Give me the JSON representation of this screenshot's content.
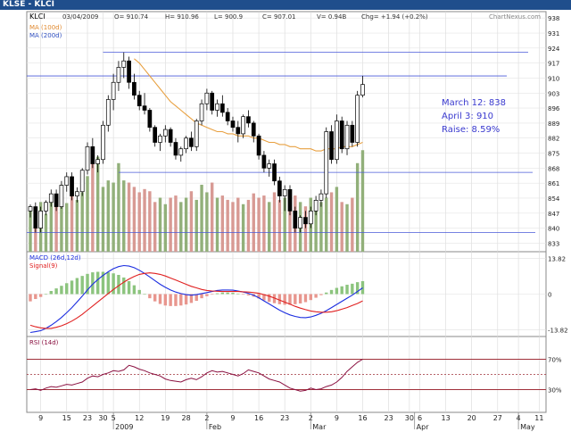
{
  "window": {
    "title": "KLSE - KLCI"
  },
  "header": {
    "symbol": "KLCI",
    "date": "03/04/2009",
    "open": "O= 910.74",
    "high": "H= 910.96",
    "low": "L= 900.9",
    "close": "C= 907.01",
    "volume": "V= 0.94B",
    "change": "Chg= +1.94 (+0.2%)",
    "watermark": "ChartNexus.com"
  },
  "legend": {
    "ma100": "MA (100d)",
    "ma200": "MA (200d)",
    "macd": "MACD (26d,12d)",
    "signal": "Signal(9)",
    "rsi": "RSI (14d)"
  },
  "annotation": {
    "line1": "March 12: 838",
    "line2": "April 3: 910",
    "line3": "Raise: 8.59%"
  },
  "colors": {
    "title_bar": "#1f4e8c",
    "ma100": "#e8a040",
    "ma200": "#3050c0",
    "hline": "#4a5ad8",
    "vol_up": "#92b07a",
    "vol_down": "#d89a94",
    "macd": "#1c2ee0",
    "signal": "#e02020",
    "hist_up": "#8cc47e",
    "hist_down": "#e8968e",
    "rsi": "#8a1040",
    "rsi_band": "#a0303a",
    "annotation": "#3a3acf"
  },
  "chart_data": [
    {
      "type": "candlestick",
      "title": "KLCI",
      "ylim": [
        829,
        941
      ],
      "yticks": [
        938,
        931,
        924,
        917,
        910,
        903,
        896,
        889,
        882,
        875,
        868,
        861,
        854,
        847,
        840,
        833
      ],
      "x_labels": [
        {
          "bar": 2,
          "label": "9"
        },
        {
          "bar": 7,
          "label": "15"
        },
        {
          "bar": 11,
          "label": "23"
        },
        {
          "bar": 14,
          "label": "30"
        },
        {
          "bar": 16,
          "label": "5"
        },
        {
          "bar": 21,
          "label": "12"
        },
        {
          "bar": 26,
          "label": "19"
        },
        {
          "bar": 30,
          "label": "28"
        },
        {
          "bar": 34,
          "label": "2"
        },
        {
          "bar": 39,
          "label": "9"
        },
        {
          "bar": 44,
          "label": "16"
        },
        {
          "bar": 49,
          "label": "23"
        },
        {
          "bar": 54,
          "label": "2"
        },
        {
          "bar": 59,
          "label": "9"
        },
        {
          "bar": 64,
          "label": "16"
        },
        {
          "bar": 69,
          "label": "23"
        },
        {
          "bar": 73,
          "label": "30"
        },
        {
          "bar": 75,
          "label": "6"
        },
        {
          "bar": 80,
          "label": "13"
        },
        {
          "bar": 85,
          "label": "20"
        },
        {
          "bar": 90,
          "label": "27"
        },
        {
          "bar": 94,
          "label": "4"
        },
        {
          "bar": 98,
          "label": "11"
        }
      ],
      "period_labels": [
        {
          "bar": 16,
          "label": "2009"
        },
        {
          "bar": 34,
          "label": "Feb"
        },
        {
          "bar": 54,
          "label": "Mar"
        },
        {
          "bar": 74,
          "label": "Apr"
        },
        {
          "bar": 94,
          "label": "May"
        }
      ],
      "series": [
        {
          "name": "KLCI",
          "ohlc": [
            [
              848,
              851,
              845,
              850
            ],
            [
              850,
              852,
              838,
              840
            ],
            [
              840,
              850,
              838,
              848
            ],
            [
              848,
              853,
              846,
              852
            ],
            [
              852,
              858,
              850,
              856
            ],
            [
              856,
              858,
              848,
              850
            ],
            [
              850,
              862,
              849,
              860
            ],
            [
              860,
              866,
              857,
              864
            ],
            [
              864,
              866,
              853,
              855
            ],
            [
              855,
              859,
              852,
              857
            ],
            [
              857,
              868,
              855,
              867
            ],
            [
              867,
              880,
              865,
              878
            ],
            [
              878,
              882,
              868,
              870
            ],
            [
              870,
              874,
              866,
              872
            ],
            [
              872,
              890,
              870,
              888
            ],
            [
              888,
              902,
              885,
              900
            ],
            [
              900,
              912,
              895,
              908
            ],
            [
              908,
              918,
              904,
              915
            ],
            [
              915,
              922,
              910,
              918
            ],
            [
              918,
              920,
              905,
              908
            ],
            [
              908,
              912,
              900,
              902
            ],
            [
              902,
              904,
              895,
              897
            ],
            [
              897,
              903,
              893,
              895
            ],
            [
              895,
              896,
              885,
              887
            ],
            [
              887,
              888,
              878,
              880
            ],
            [
              880,
              884,
              876,
              883
            ],
            [
              883,
              888,
              880,
              886
            ],
            [
              886,
              887,
              878,
              880
            ],
            [
              880,
              882,
              872,
              874
            ],
            [
              874,
              878,
              871,
              877
            ],
            [
              877,
              883,
              875,
              882
            ],
            [
              882,
              885,
              876,
              878
            ],
            [
              878,
              891,
              876,
              890
            ],
            [
              890,
              900,
              888,
              898
            ],
            [
              898,
              905,
              895,
              903
            ],
            [
              903,
              904,
              893,
              895
            ],
            [
              895,
              900,
              892,
              898
            ],
            [
              898,
              902,
              892,
              894
            ],
            [
              894,
              896,
              888,
              890
            ],
            [
              890,
              892,
              885,
              887
            ],
            [
              887,
              890,
              880,
              884
            ],
            [
              884,
              893,
              882,
              892
            ],
            [
              892,
              895,
              887,
              889
            ],
            [
              889,
              890,
              880,
              883
            ],
            [
              883,
              884,
              872,
              874
            ],
            [
              874,
              876,
              866,
              868
            ],
            [
              868,
              872,
              864,
              870
            ],
            [
              870,
              872,
              860,
              862
            ],
            [
              862,
              864,
              852,
              855
            ],
            [
              855,
              860,
              848,
              858
            ],
            [
              858,
              860,
              846,
              848
            ],
            [
              848,
              850,
              838,
              840
            ],
            [
              840,
              846,
              838,
              845
            ],
            [
              845,
              848,
              840,
              842
            ],
            [
              842,
              850,
              840,
              848
            ],
            [
              848,
              855,
              846,
              853
            ],
            [
              853,
              858,
              850,
              856
            ],
            [
              856,
              887,
              854,
              885
            ],
            [
              885,
              888,
              870,
              872
            ],
            [
              872,
              893,
              870,
              890
            ],
            [
              890,
              892,
              875,
              877
            ],
            [
              877,
              890,
              874,
              888
            ],
            [
              888,
              890,
              878,
              880
            ],
            [
              880,
              904,
              878,
              902
            ],
            [
              902,
              911,
              901,
              907
            ]
          ]
        }
      ]
    },
    {
      "type": "bar",
      "title": "Volume",
      "series": [
        {
          "name": "Volume",
          "values": [
            0.42,
            0.38,
            0.46,
            0.35,
            0.48,
            0.5,
            0.62,
            0.45,
            0.52,
            0.48,
            0.55,
            0.7,
            0.95,
            0.88,
            0.6,
            0.66,
            0.64,
            0.82,
            0.66,
            0.64,
            0.6,
            0.55,
            0.58,
            0.56,
            0.46,
            0.5,
            0.44,
            0.5,
            0.52,
            0.46,
            0.5,
            0.56,
            0.48,
            0.62,
            0.55,
            0.64,
            0.5,
            0.52,
            0.48,
            0.46,
            0.5,
            0.44,
            0.48,
            0.54,
            0.5,
            0.52,
            0.46,
            0.55,
            0.48,
            0.5,
            0.44,
            0.52,
            0.46,
            0.42,
            0.5,
            0.48,
            0.46,
            0.5,
            0.55,
            0.6,
            0.46,
            0.44,
            0.5,
            0.82,
            0.94
          ]
        }
      ]
    },
    {
      "type": "line",
      "title": "MA",
      "series": [
        {
          "name": "MA (100d)",
          "values": [
            null,
            null,
            null,
            null,
            null,
            null,
            null,
            null,
            null,
            null,
            null,
            null,
            null,
            null,
            null,
            null,
            null,
            null,
            null,
            null,
            919,
            917,
            914,
            911,
            908,
            905,
            902,
            899,
            897,
            895,
            893,
            891,
            889,
            888,
            887,
            886,
            885,
            885,
            884,
            884,
            883,
            883,
            883,
            882,
            882,
            881,
            880,
            880,
            879,
            879,
            878,
            878,
            877,
            877,
            877,
            876,
            876,
            877,
            877,
            877,
            878,
            878,
            878,
            879,
            880
          ]
        },
        {
          "name": "MA (200d)",
          "values": []
        }
      ]
    },
    {
      "type": "bar",
      "title": "MACD (26d,12d)",
      "ylim": [
        -16,
        16
      ],
      "yticks": [
        13.82,
        0,
        -13.82
      ],
      "series": [
        {
          "name": "MACD (26d,12d)",
          "values": [
            -14.8,
            -14.5,
            -14.1,
            -13.2,
            -12.0,
            -10.6,
            -9.0,
            -7.2,
            -5.2,
            -3.0,
            -0.8,
            1.6,
            3.8,
            5.6,
            7.2,
            8.6,
            9.8,
            10.6,
            11.0,
            10.8,
            10.2,
            9.2,
            8.0,
            6.6,
            5.2,
            3.8,
            2.6,
            1.6,
            0.8,
            0.2,
            -0.2,
            -0.4,
            -0.2,
            0.2,
            0.6,
            1.0,
            1.4,
            1.6,
            1.6,
            1.5,
            1.2,
            0.8,
            0.3,
            -0.4,
            -1.4,
            -2.6,
            -3.8,
            -5.0,
            -6.2,
            -7.2,
            -8.0,
            -8.6,
            -9.0,
            -9.1,
            -8.8,
            -8.2,
            -7.4,
            -6.4,
            -5.2,
            -4.0,
            -2.8,
            -1.6,
            -0.4,
            1.0,
            2.4
          ]
        },
        {
          "name": "Signal(9)",
          "values": [
            -12.0,
            -12.6,
            -13.0,
            -13.2,
            -13.2,
            -12.8,
            -12.2,
            -11.4,
            -10.4,
            -9.2,
            -7.8,
            -6.2,
            -4.6,
            -3.0,
            -1.4,
            0.2,
            1.8,
            3.2,
            4.6,
            5.8,
            6.8,
            7.6,
            8.0,
            8.2,
            8.0,
            7.6,
            7.0,
            6.2,
            5.4,
            4.6,
            3.8,
            3.0,
            2.4,
            1.8,
            1.4,
            1.2,
            1.1,
            1.0,
            1.0,
            1.0,
            1.0,
            0.9,
            0.8,
            0.6,
            0.3,
            -0.2,
            -0.8,
            -1.5,
            -2.3,
            -3.1,
            -3.9,
            -4.7,
            -5.4,
            -6.0,
            -6.5,
            -6.8,
            -7.0,
            -7.0,
            -6.8,
            -6.4,
            -5.8,
            -5.2,
            -4.4,
            -3.6,
            -2.6
          ]
        },
        {
          "name": "Histogram",
          "values": [
            -2.8,
            -1.9,
            -1.1,
            0.0,
            1.2,
            2.2,
            3.2,
            4.2,
            5.2,
            6.2,
            7.0,
            7.8,
            8.4,
            8.6,
            8.6,
            8.4,
            8.0,
            7.4,
            6.4,
            5.0,
            3.4,
            1.6,
            0.0,
            -1.6,
            -2.8,
            -3.8,
            -4.4,
            -4.6,
            -4.6,
            -4.4,
            -4.0,
            -3.4,
            -2.6,
            -1.6,
            -0.8,
            -0.2,
            0.3,
            0.6,
            0.6,
            0.5,
            0.2,
            -0.1,
            -0.5,
            -1.0,
            -1.7,
            -2.4,
            -3.0,
            -3.5,
            -3.9,
            -4.1,
            -4.1,
            -3.9,
            -3.6,
            -3.1,
            -2.3,
            -1.4,
            -0.4,
            0.6,
            1.6,
            2.4,
            3.0,
            3.6,
            4.0,
            4.6,
            5.0
          ]
        }
      ]
    },
    {
      "type": "line",
      "title": "RSI (14d)",
      "ylim": [
        0,
        100
      ],
      "yticks": [
        70,
        30
      ],
      "series": [
        {
          "name": "RSI (14d)",
          "values": [
            30,
            31,
            29,
            32,
            34,
            33,
            35,
            37,
            36,
            38,
            40,
            45,
            48,
            47,
            50,
            52,
            55,
            54,
            56,
            62,
            60,
            57,
            55,
            52,
            50,
            48,
            44,
            42,
            41,
            40,
            43,
            45,
            43,
            47,
            52,
            55,
            53,
            54,
            52,
            50,
            48,
            51,
            56,
            54,
            52,
            48,
            44,
            42,
            40,
            36,
            32,
            30,
            28,
            29,
            32,
            30,
            31,
            34,
            36,
            40,
            46,
            54,
            60,
            66,
            70
          ]
        }
      ]
    }
  ]
}
